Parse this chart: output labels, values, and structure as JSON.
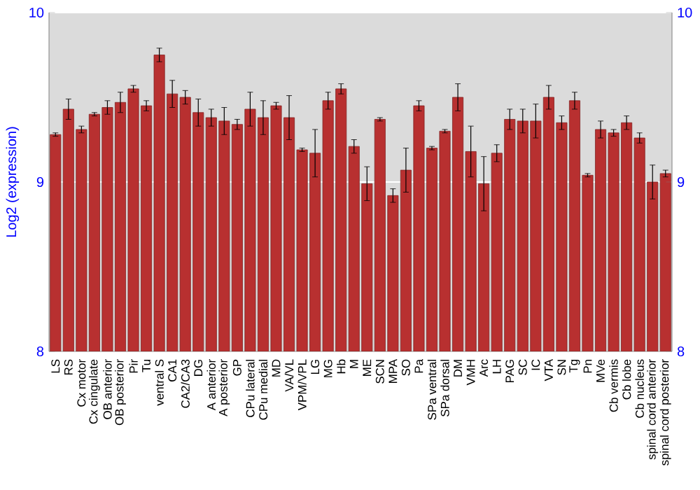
{
  "chart_data": {
    "type": "bar",
    "ylabel": "Log2 (expression)",
    "categories": [
      "LS",
      "RS",
      "Cx motor",
      "Cx cingulate",
      "OB anterior",
      "OB posterior",
      "Pir",
      "Tu",
      "ventral S",
      "CA1",
      "CA2/CA3",
      "DG",
      "A anterior",
      "A posterior",
      "GP",
      "CPu lateral",
      "CPu medial",
      "MD",
      "VA/VL",
      "VPM/VPL",
      "LG",
      "MG",
      "Hb",
      "M",
      "ME",
      "SCN",
      "MPA",
      "SO",
      "Pa",
      "SPa ventral",
      "SPa dorsal",
      "DM",
      "VMH",
      "Arc",
      "LH",
      "PAG",
      "SC",
      "IC",
      "VTA",
      "SN",
      "Tg",
      "Pn",
      "MVe",
      "Cb vermis",
      "Cb lobe",
      "Cb nucleus",
      "spinal cord anterior",
      "spinal cord posterior"
    ],
    "values": [
      9.28,
      9.43,
      9.31,
      9.4,
      9.44,
      9.47,
      9.55,
      9.45,
      9.75,
      9.52,
      9.5,
      9.41,
      9.38,
      9.36,
      9.34,
      9.43,
      9.38,
      9.45,
      9.38,
      9.19,
      9.17,
      9.48,
      9.55,
      9.21,
      8.99,
      9.37,
      8.92,
      9.07,
      9.45,
      9.2,
      9.3,
      9.5,
      9.18,
      8.99,
      9.17,
      9.37,
      9.36,
      9.36,
      9.5,
      9.35,
      9.48,
      9.04,
      9.31,
      9.29,
      9.35,
      9.26,
      9.0,
      9.05
    ],
    "errors": [
      0.01,
      0.06,
      0.02,
      0.01,
      0.04,
      0.06,
      0.02,
      0.03,
      0.04,
      0.08,
      0.04,
      0.08,
      0.05,
      0.08,
      0.03,
      0.1,
      0.1,
      0.02,
      0.13,
      0.01,
      0.14,
      0.05,
      0.03,
      0.04,
      0.1,
      0.01,
      0.04,
      0.13,
      0.03,
      0.01,
      0.01,
      0.08,
      0.15,
      0.16,
      0.05,
      0.06,
      0.07,
      0.1,
      0.07,
      0.04,
      0.05,
      0.01,
      0.05,
      0.02,
      0.04,
      0.03,
      0.1,
      0.02
    ],
    "color": "#b83030",
    "ylim": [
      8,
      10
    ],
    "yticks": [
      8,
      9,
      10
    ],
    "y2lim": [
      8,
      10
    ],
    "y2ticks": [
      8,
      9,
      10
    ],
    "grid": "y"
  }
}
